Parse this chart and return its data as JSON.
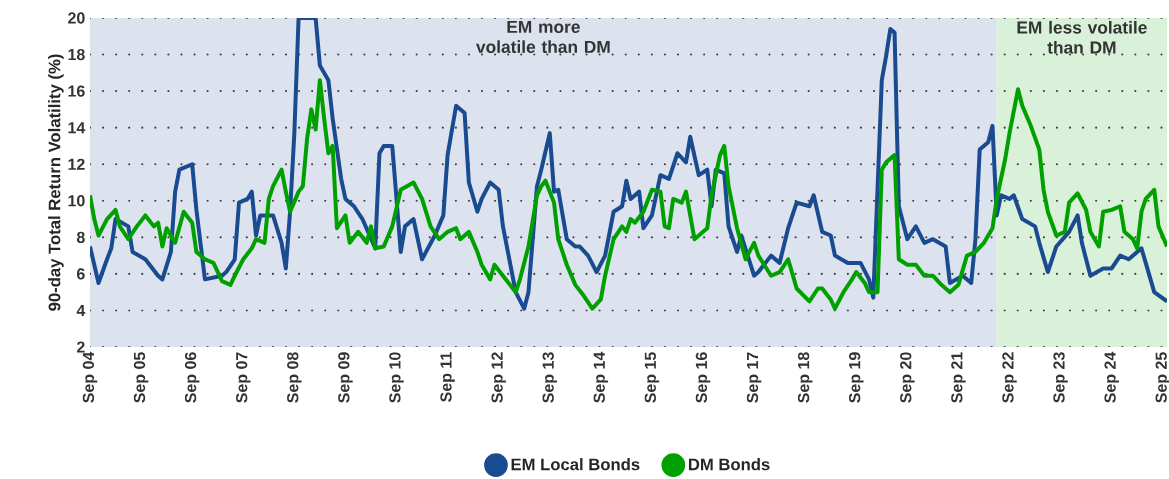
{
  "chart_data": {
    "type": "line",
    "ylabel": "90-day Total Return Volatility (%)",
    "xlim": [
      "2004-09",
      "2025-10"
    ],
    "ylim": [
      2,
      20
    ],
    "xticks": [
      {
        "value": "2004-09",
        "label": "Sep 04"
      },
      {
        "value": "2005-09",
        "label": "Sep 05"
      },
      {
        "value": "2006-09",
        "label": "Sep 06"
      },
      {
        "value": "2007-09",
        "label": "Sep 07"
      },
      {
        "value": "2008-09",
        "label": "Sep 08"
      },
      {
        "value": "2009-09",
        "label": "Sep 09"
      },
      {
        "value": "2010-09",
        "label": "Sep 10"
      },
      {
        "value": "2011-09",
        "label": "Sep 11"
      },
      {
        "value": "2012-09",
        "label": "Sep 12"
      },
      {
        "value": "2013-09",
        "label": "Sep 13"
      },
      {
        "value": "2014-09",
        "label": "Sep 14"
      },
      {
        "value": "2015-09",
        "label": "Sep 15"
      },
      {
        "value": "2016-09",
        "label": "Sep 16"
      },
      {
        "value": "2017-09",
        "label": "Sep 17"
      },
      {
        "value": "2018-09",
        "label": "Sep 18"
      },
      {
        "value": "2019-09",
        "label": "Sep 19"
      },
      {
        "value": "2020-09",
        "label": "Sep 20"
      },
      {
        "value": "2021-09",
        "label": "Sep 21"
      },
      {
        "value": "2022-09",
        "label": "Sep 22"
      },
      {
        "value": "2023-09",
        "label": "Sep 23"
      },
      {
        "value": "2024-09",
        "label": "Sep 24"
      },
      {
        "value": "2025-09",
        "label": "Sep 25"
      }
    ],
    "yticks": [
      2,
      4,
      6,
      8,
      10,
      12,
      14,
      16,
      18,
      20
    ],
    "grid": "y",
    "legend": "bottom",
    "marker": "none",
    "line_style": "solid",
    "bands": [
      {
        "axis": "x",
        "from": "2004-09",
        "to": "2022-06",
        "label": "EM more volatile than DM",
        "color": "#dce3ef"
      },
      {
        "axis": "x",
        "from": "2022-06",
        "to": "2025-10",
        "label": "EM less volatile than DM",
        "color": "#d9f0d9"
      }
    ],
    "series": [
      {
        "name": "EM Local Bonds",
        "color": "#1a4a8f",
        "x": [
          "2004-09",
          "2004-11",
          "2005-01",
          "2005-02",
          "2005-03",
          "2005-06",
          "2005-07",
          "2005-10",
          "2006-01",
          "2006-02",
          "2006-04",
          "2006-05",
          "2006-06",
          "2006-09",
          "2006-10",
          "2006-12",
          "2007-04",
          "2007-05",
          "2007-07",
          "2007-08",
          "2007-10",
          "2007-11",
          "2007-12",
          "2008-01",
          "2008-04",
          "2008-06",
          "2008-07",
          "2008-08",
          "2008-09",
          "2008-10",
          "2009-02",
          "2009-03",
          "2009-05",
          "2009-06",
          "2009-08",
          "2009-09",
          "2009-11",
          "2010-01",
          "2010-04",
          "2010-05",
          "2010-06",
          "2010-08",
          "2010-10",
          "2010-11",
          "2011-01",
          "2011-03",
          "2011-06",
          "2011-08",
          "2011-09",
          "2011-11",
          "2012-01",
          "2012-02",
          "2012-04",
          "2012-05",
          "2012-07",
          "2012-09",
          "2012-10",
          "2013-01",
          "2013-03",
          "2013-04",
          "2013-06",
          "2013-07",
          "2013-09",
          "2013-10",
          "2013-11",
          "2014-01",
          "2014-03",
          "2014-04",
          "2014-06",
          "2014-08",
          "2014-10",
          "2014-12",
          "2015-02",
          "2015-03",
          "2015-04",
          "2015-06",
          "2015-07",
          "2015-09",
          "2015-11",
          "2016-01",
          "2016-03",
          "2016-05",
          "2016-06",
          "2016-08",
          "2016-10",
          "2016-11",
          "2016-12",
          "2017-02",
          "2017-03",
          "2017-05",
          "2017-06",
          "2017-09",
          "2017-10",
          "2018-01",
          "2018-03",
          "2018-05",
          "2018-07",
          "2018-10",
          "2018-11",
          "2019-01",
          "2019-03",
          "2019-04",
          "2019-07",
          "2019-10",
          "2019-12",
          "2020-01",
          "2020-03",
          "2020-04",
          "2020-05",
          "2020-06",
          "2020-07",
          "2020-09",
          "2020-11",
          "2021-01",
          "2021-03",
          "2021-06",
          "2021-07",
          "2021-10",
          "2021-12",
          "2022-01",
          "2022-02",
          "2022-04",
          "2022-05",
          "2022-06",
          "2022-07",
          "2022-09",
          "2022-10",
          "2022-12",
          "2023-03",
          "2023-04",
          "2023-06",
          "2023-08",
          "2023-11",
          "2024-01",
          "2024-02",
          "2024-04",
          "2024-07",
          "2024-09",
          "2024-11",
          "2025-01",
          "2025-04",
          "2025-05",
          "2025-07",
          "2025-10"
        ],
        "values": [
          7.5,
          5.5,
          6.8,
          7.4,
          9.0,
          8.6,
          7.2,
          6.8,
          5.9,
          5.7,
          7.2,
          10.5,
          11.7,
          12.0,
          9.5,
          5.7,
          5.9,
          6.1,
          6.8,
          9.9,
          10.1,
          10.5,
          8.1,
          9.2,
          9.2,
          7.7,
          6.3,
          9.4,
          13.7,
          20,
          20,
          17.4,
          16.6,
          14.5,
          11.2,
          10.1,
          9.7,
          9.0,
          7.4,
          12.6,
          13.0,
          13.0,
          7.2,
          8.6,
          9.0,
          6.8,
          8.1,
          9.2,
          12.5,
          15.2,
          14.8,
          11.0,
          9.4,
          10.1,
          11.0,
          10.6,
          8.6,
          5.0,
          4.1,
          5.0,
          10.8,
          11.7,
          13.7,
          10.5,
          10.6,
          7.9,
          7.5,
          7.5,
          7.0,
          6.1,
          7.0,
          9.4,
          9.7,
          11.1,
          10.1,
          10.5,
          8.5,
          9.2,
          11.4,
          11.2,
          12.6,
          12.1,
          13.5,
          11.4,
          11.7,
          9.7,
          11.7,
          11.5,
          8.6,
          7.2,
          8.1,
          5.9,
          6.1,
          7.0,
          6.6,
          8.5,
          9.9,
          9.7,
          10.3,
          8.3,
          8.1,
          7.0,
          6.6,
          6.6,
          5.7,
          4.7,
          16.6,
          17.9,
          19.4,
          19.2,
          9.7,
          7.9,
          8.6,
          7.7,
          7.9,
          7.5,
          5.5,
          5.9,
          5.5,
          7.9,
          12.8,
          13.2,
          14.1,
          9.2,
          10.3,
          10.1,
          10.3,
          9.0,
          8.6,
          7.7,
          6.1,
          7.5,
          8.3,
          9.2,
          7.7,
          5.9,
          6.3,
          6.3,
          7.0,
          6.8,
          7.4,
          6.6,
          5.0,
          4.5
        ]
      },
      {
        "name": "DM Bonds",
        "color": "#00a000",
        "x": [
          "2004-09",
          "2004-10",
          "2004-11",
          "2005-01",
          "2005-03",
          "2005-04",
          "2005-06",
          "2005-08",
          "2005-10",
          "2005-12",
          "2006-01",
          "2006-02",
          "2006-03",
          "2006-05",
          "2006-07",
          "2006-09",
          "2006-10",
          "2006-12",
          "2007-02",
          "2007-04",
          "2007-06",
          "2007-07",
          "2007-09",
          "2007-11",
          "2007-12",
          "2008-02",
          "2008-03",
          "2008-04",
          "2008-06",
          "2008-07",
          "2008-08",
          "2008-10",
          "2008-11",
          "2008-12",
          "2009-01",
          "2009-02",
          "2009-03",
          "2009-04",
          "2009-05",
          "2009-06",
          "2009-07",
          "2009-09",
          "2009-10",
          "2009-12",
          "2010-02",
          "2010-03",
          "2010-04",
          "2010-06",
          "2010-08",
          "2010-10",
          "2011-01",
          "2011-03",
          "2011-05",
          "2011-07",
          "2011-09",
          "2011-11",
          "2011-12",
          "2012-02",
          "2012-04",
          "2012-05",
          "2012-07",
          "2012-08",
          "2012-10",
          "2013-01",
          "2013-02",
          "2013-04",
          "2013-06",
          "2013-07",
          "2013-08",
          "2013-10",
          "2013-11",
          "2014-01",
          "2014-03",
          "2014-05",
          "2014-07",
          "2014-09",
          "2014-10",
          "2014-12",
          "2015-02",
          "2015-03",
          "2015-04",
          "2015-05",
          "2015-07",
          "2015-09",
          "2015-11",
          "2015-12",
          "2016-01",
          "2016-02",
          "2016-04",
          "2016-05",
          "2016-07",
          "2016-09",
          "2016-10",
          "2016-11",
          "2017-01",
          "2017-02",
          "2017-03",
          "2017-05",
          "2017-07",
          "2017-09",
          "2017-10",
          "2018-01",
          "2018-03",
          "2018-05",
          "2018-07",
          "2018-10",
          "2018-12",
          "2019-01",
          "2019-03",
          "2019-04",
          "2019-06",
          "2019-08",
          "2019-09",
          "2019-11",
          "2019-12",
          "2020-02",
          "2020-03",
          "2020-04",
          "2020-06",
          "2020-07",
          "2020-09",
          "2020-11",
          "2021-01",
          "2021-03",
          "2021-05",
          "2021-07",
          "2021-09",
          "2021-11",
          "2022-01",
          "2022-03",
          "2022-05",
          "2022-06",
          "2022-08",
          "2022-09",
          "2022-11",
          "2022-12",
          "2023-02",
          "2023-04",
          "2023-05",
          "2023-06",
          "2023-08",
          "2023-10",
          "2023-11",
          "2024-01",
          "2024-03",
          "2024-04",
          "2024-06",
          "2024-07",
          "2024-09",
          "2024-11",
          "2024-12",
          "2025-02",
          "2025-03",
          "2025-04",
          "2025-05",
          "2025-07",
          "2025-08",
          "2025-10"
        ],
        "values": [
          10.3,
          9.0,
          8.1,
          9.0,
          9.5,
          8.6,
          7.9,
          8.6,
          9.2,
          8.6,
          8.8,
          7.5,
          8.5,
          7.7,
          9.4,
          8.8,
          7.2,
          6.8,
          6.6,
          5.6,
          5.4,
          5.9,
          6.8,
          7.4,
          7.9,
          7.7,
          10.1,
          10.8,
          11.7,
          10.5,
          9.4,
          10.5,
          10.8,
          13.4,
          15.0,
          13.9,
          16.6,
          14.5,
          12.6,
          13.0,
          8.5,
          9.2,
          7.7,
          8.3,
          7.7,
          8.6,
          7.4,
          7.5,
          8.6,
          10.6,
          11.0,
          10.1,
          8.6,
          7.9,
          8.3,
          8.5,
          7.9,
          8.3,
          7.2,
          6.5,
          5.7,
          6.5,
          5.9,
          5.0,
          5.7,
          7.5,
          10.3,
          10.8,
          11.1,
          9.9,
          7.9,
          6.5,
          5.4,
          4.8,
          4.1,
          4.6,
          5.9,
          7.9,
          8.6,
          8.3,
          9.0,
          8.8,
          9.4,
          10.6,
          10.5,
          8.6,
          8.5,
          10.1,
          9.9,
          10.5,
          7.9,
          8.3,
          8.5,
          10.3,
          12.5,
          13.0,
          10.8,
          8.5,
          6.8,
          7.7,
          7.0,
          5.9,
          6.1,
          6.8,
          5.2,
          4.5,
          5.2,
          5.2,
          4.6,
          4.1,
          5.0,
          5.7,
          6.1,
          5.5,
          5.0,
          5.0,
          11.7,
          12.1,
          12.5,
          6.8,
          6.5,
          6.5,
          5.9,
          5.9,
          5.4,
          5.0,
          5.4,
          7.0,
          7.2,
          7.7,
          8.5,
          10.1,
          12.3,
          13.7,
          16.1,
          15.2,
          14.1,
          12.8,
          10.6,
          9.4,
          8.1,
          8.3,
          9.9,
          10.4,
          9.5,
          8.3,
          7.5,
          9.4,
          9.5,
          9.7,
          8.3,
          7.9,
          7.4,
          9.4,
          10.1,
          10.6,
          8.6,
          7.5
        ]
      }
    ]
  }
}
